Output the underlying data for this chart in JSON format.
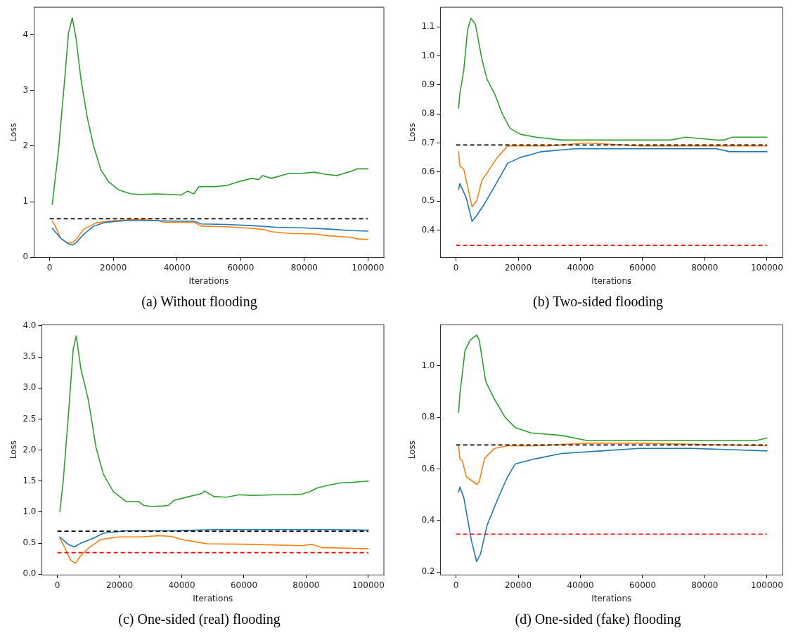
{
  "chart_data": [
    {
      "type": "line",
      "title": "(a) Without flooding",
      "xlabel": "Iterations",
      "ylabel": "Loss",
      "xlim": [
        -5000,
        105000
      ],
      "xticks": [
        0,
        20000,
        40000,
        60000,
        80000,
        100000
      ],
      "ylim": [
        0,
        4.5
      ],
      "yticks": [
        0,
        1,
        2,
        3,
        4
      ],
      "grid": false,
      "legend": false,
      "marker": "none",
      "line_style": "solid",
      "ref_lines": [
        {
          "axis": "y",
          "value": 0.693,
          "color": "#000000",
          "line_style": "dashed"
        }
      ],
      "series": [
        {
          "color": "#1f77b4",
          "x": [
            800,
            3500,
            5900,
            7100,
            8300,
            10600,
            13800,
            17700,
            24000,
            31900,
            39800,
            45300,
            47600,
            55500,
            63400,
            71300,
            79100,
            87000,
            94900,
            100000
          ],
          "values": [
            0.52,
            0.34,
            0.24,
            0.22,
            0.26,
            0.41,
            0.56,
            0.63,
            0.66,
            0.66,
            0.65,
            0.65,
            0.6,
            0.59,
            0.57,
            0.54,
            0.53,
            0.51,
            0.48,
            0.47
          ]
        },
        {
          "color": "#ff7f0e",
          "x": [
            800,
            1600,
            3500,
            5500,
            7100,
            8300,
            10600,
            14600,
            20100,
            27900,
            34300,
            35800,
            45300,
            47600,
            55500,
            63400,
            67300,
            69700,
            75200,
            83100,
            87000,
            94900,
            96500,
            100000
          ],
          "values": [
            0.65,
            0.58,
            0.34,
            0.26,
            0.26,
            0.32,
            0.5,
            0.62,
            0.66,
            0.68,
            0.66,
            0.63,
            0.63,
            0.56,
            0.55,
            0.52,
            0.5,
            0.46,
            0.43,
            0.42,
            0.39,
            0.36,
            0.33,
            0.32
          ]
        },
        {
          "color": "#2ca02c",
          "x": [
            800,
            2760,
            4720,
            5900,
            7100,
            8300,
            9800,
            11800,
            13800,
            16100,
            18500,
            21700,
            25600,
            28700,
            33500,
            38200,
            41300,
            43300,
            45300,
            46900,
            51600,
            55500,
            59400,
            63400,
            65700,
            66900,
            69700,
            75200,
            79100,
            83100,
            87000,
            90200,
            94900,
            96500,
            100000
          ],
          "values": [
            0.95,
            1.92,
            3.21,
            4.03,
            4.31,
            3.94,
            3.21,
            2.52,
            2.0,
            1.57,
            1.36,
            1.21,
            1.14,
            1.13,
            1.14,
            1.13,
            1.12,
            1.19,
            1.14,
            1.27,
            1.27,
            1.29,
            1.36,
            1.42,
            1.4,
            1.47,
            1.42,
            1.51,
            1.51,
            1.53,
            1.49,
            1.47,
            1.55,
            1.59,
            1.59
          ]
        }
      ]
    },
    {
      "type": "line",
      "title": "(b) Two-sided flooding",
      "xlabel": "Iterations",
      "ylabel": "Loss",
      "xlim": [
        -5000,
        105000
      ],
      "xticks": [
        0,
        20000,
        40000,
        60000,
        80000,
        100000
      ],
      "ylim": [
        0.306,
        1.168
      ],
      "yticks": [
        {
          "value": 0.4,
          "label": "0.4"
        },
        {
          "value": 0.5,
          "label": "0.5"
        },
        {
          "value": 0.6,
          "label": "0.6"
        },
        {
          "value": 0.7,
          "label": "0.7"
        },
        {
          "value": 0.8,
          "label": "0.8"
        },
        {
          "value": 0.9,
          "label": "0.9"
        },
        {
          "value": 1.0,
          "label": "1.0"
        },
        {
          "value": 1.1,
          "label": "1.1"
        }
      ],
      "grid": false,
      "legend": false,
      "marker": "none",
      "line_style": "solid",
      "ref_lines": [
        {
          "axis": "y",
          "value": 0.693,
          "color": "#000000",
          "line_style": "dashed"
        },
        {
          "axis": "y",
          "value": 0.347,
          "color": "#ff0000",
          "line_style": "dashed"
        }
      ],
      "series": [
        {
          "color": "#1f77b4",
          "x": [
            830,
            1240,
            3320,
            5150,
            6640,
            9130,
            12400,
            16600,
            20700,
            27400,
            38200,
            50600,
            67200,
            83800,
            88000,
            100000
          ],
          "values": [
            0.54,
            0.56,
            0.51,
            0.43,
            0.45,
            0.49,
            0.55,
            0.63,
            0.65,
            0.67,
            0.68,
            0.68,
            0.68,
            0.68,
            0.67,
            0.67
          ]
        },
        {
          "color": "#ff7f0e",
          "x": [
            830,
            1240,
            2490,
            3730,
            5150,
            6640,
            8300,
            10800,
            13300,
            16600,
            19900,
            29900,
            42300,
            58900,
            100000
          ],
          "values": [
            0.67,
            0.62,
            0.61,
            0.55,
            0.48,
            0.5,
            0.57,
            0.61,
            0.65,
            0.69,
            0.69,
            0.69,
            0.7,
            0.69,
            0.69
          ]
        },
        {
          "color": "#2ca02c",
          "x": [
            830,
            1240,
            2490,
            3730,
            4810,
            6220,
            8300,
            9960,
            12400,
            14900,
            17400,
            20700,
            25700,
            34000,
            44800,
            54800,
            58900,
            68900,
            73900,
            83800,
            86300,
            88800,
            92100,
            100000
          ],
          "values": [
            0.82,
            0.87,
            0.95,
            1.09,
            1.13,
            1.11,
            0.99,
            0.92,
            0.87,
            0.8,
            0.75,
            0.73,
            0.72,
            0.71,
            0.71,
            0.71,
            0.71,
            0.71,
            0.72,
            0.71,
            0.71,
            0.72,
            0.72,
            0.72
          ]
        }
      ]
    },
    {
      "type": "line",
      "title": "(c) One-sided (real) flooding",
      "xlabel": "Iterations",
      "ylabel": "Loss",
      "xlim": [
        -5000,
        105000
      ],
      "xticks": [
        0,
        20000,
        40000,
        60000,
        80000,
        100000
      ],
      "ylim": [
        -0.01,
        4.02
      ],
      "yticks": [
        {
          "value": 0,
          "label": "0.0"
        },
        {
          "value": 0.5,
          "label": "0.5"
        },
        {
          "value": 1,
          "label": "1.0"
        },
        {
          "value": 1.5,
          "label": "1.5"
        },
        {
          "value": 2,
          "label": "2.0"
        },
        {
          "value": 2.5,
          "label": "2.5"
        },
        {
          "value": 3,
          "label": "3.0"
        },
        {
          "value": 3.5,
          "label": "3.5"
        },
        {
          "value": 4,
          "label": "4.0"
        }
      ],
      "grid": false,
      "legend": false,
      "marker": "none",
      "line_style": "solid",
      "ref_lines": [
        {
          "axis": "y",
          "value": 0.693,
          "color": "#000000",
          "line_style": "dashed"
        },
        {
          "axis": "y",
          "value": 0.347,
          "color": "#ff0000",
          "line_style": "dashed"
        }
      ],
      "series": [
        {
          "color": "#1f77b4",
          "x": [
            810,
            3480,
            5500,
            7520,
            11600,
            14800,
            22100,
            38300,
            50400,
            62500,
            86800,
            100000
          ],
          "values": [
            0.6,
            0.48,
            0.44,
            0.5,
            0.58,
            0.66,
            0.7,
            0.7,
            0.72,
            0.72,
            0.72,
            0.71
          ]
        },
        {
          "color": "#ff7f0e",
          "x": [
            810,
            2670,
            4290,
            5910,
            7520,
            10000,
            14000,
            19700,
            27000,
            32600,
            36700,
            39900,
            44700,
            47900,
            62500,
            78700,
            81900,
            85100,
            100000
          ],
          "values": [
            0.58,
            0.4,
            0.22,
            0.18,
            0.3,
            0.42,
            0.56,
            0.6,
            0.6,
            0.62,
            0.61,
            0.56,
            0.52,
            0.49,
            0.48,
            0.46,
            0.48,
            0.43,
            0.41
          ]
        },
        {
          "color": "#2ca02c",
          "x": [
            810,
            1860,
            3480,
            5100,
            6070,
            7520,
            10000,
            12400,
            14800,
            18000,
            22100,
            26100,
            27700,
            30200,
            34200,
            35800,
            37500,
            42300,
            46400,
            47300,
            50400,
            54400,
            58500,
            62500,
            70600,
            74700,
            78700,
            81200,
            83600,
            86800,
            90900,
            94900,
            100000
          ],
          "values": [
            1.01,
            1.49,
            2.52,
            3.63,
            3.84,
            3.32,
            2.8,
            2.05,
            1.61,
            1.33,
            1.17,
            1.17,
            1.11,
            1.09,
            1.1,
            1.11,
            1.19,
            1.25,
            1.3,
            1.34,
            1.25,
            1.24,
            1.28,
            1.27,
            1.28,
            1.28,
            1.29,
            1.33,
            1.39,
            1.43,
            1.47,
            1.48,
            1.5
          ]
        }
      ]
    },
    {
      "type": "line",
      "title": "(d) One-sided (fake) flooding",
      "xlabel": "Iterations",
      "ylabel": "Loss",
      "xlim": [
        -5000,
        105000
      ],
      "xticks": [
        0,
        20000,
        40000,
        60000,
        80000,
        100000
      ],
      "ylim": [
        0.189,
        1.16
      ],
      "yticks": [
        {
          "value": 0.2,
          "label": "0.2"
        },
        {
          "value": 0.4,
          "label": "0.4"
        },
        {
          "value": 0.6,
          "label": "0.6"
        },
        {
          "value": 0.8,
          "label": "0.8"
        },
        {
          "value": 1.0,
          "label": "1.0"
        }
      ],
      "grid": false,
      "legend": false,
      "marker": "none",
      "line_style": "solid",
      "ref_lines": [
        {
          "axis": "y",
          "value": 0.693,
          "color": "#000000",
          "line_style": "dashed"
        },
        {
          "axis": "y",
          "value": 0.347,
          "color": "#ff0000",
          "line_style": "dashed"
        }
      ],
      "series": [
        {
          "color": "#1f77b4",
          "x": [
            830,
            1240,
            2490,
            4980,
            6640,
            7880,
            9960,
            13300,
            16600,
            19100,
            25700,
            34000,
            46500,
            58900,
            75500,
            100000
          ],
          "values": [
            0.51,
            0.53,
            0.49,
            0.32,
            0.24,
            0.27,
            0.38,
            0.48,
            0.57,
            0.62,
            0.64,
            0.66,
            0.67,
            0.68,
            0.68,
            0.67
          ]
        },
        {
          "color": "#ff7f0e",
          "x": [
            830,
            1240,
            2070,
            3320,
            6640,
            7470,
            9130,
            12400,
            16600,
            25700,
            42300,
            58900,
            100000
          ],
          "values": [
            0.69,
            0.64,
            0.63,
            0.57,
            0.54,
            0.55,
            0.64,
            0.68,
            0.69,
            0.69,
            0.7,
            0.7,
            0.69
          ]
        },
        {
          "color": "#2ca02c",
          "x": [
            830,
            1240,
            2900,
            4560,
            6640,
            7470,
            9540,
            12400,
            15800,
            19100,
            24100,
            34000,
            42300,
            50600,
            58900,
            79700,
            88000,
            96300,
            100000
          ],
          "values": [
            0.82,
            0.89,
            1.06,
            1.1,
            1.12,
            1.1,
            0.94,
            0.87,
            0.8,
            0.76,
            0.74,
            0.73,
            0.71,
            0.71,
            0.71,
            0.71,
            0.71,
            0.71,
            0.72
          ]
        }
      ]
    }
  ]
}
